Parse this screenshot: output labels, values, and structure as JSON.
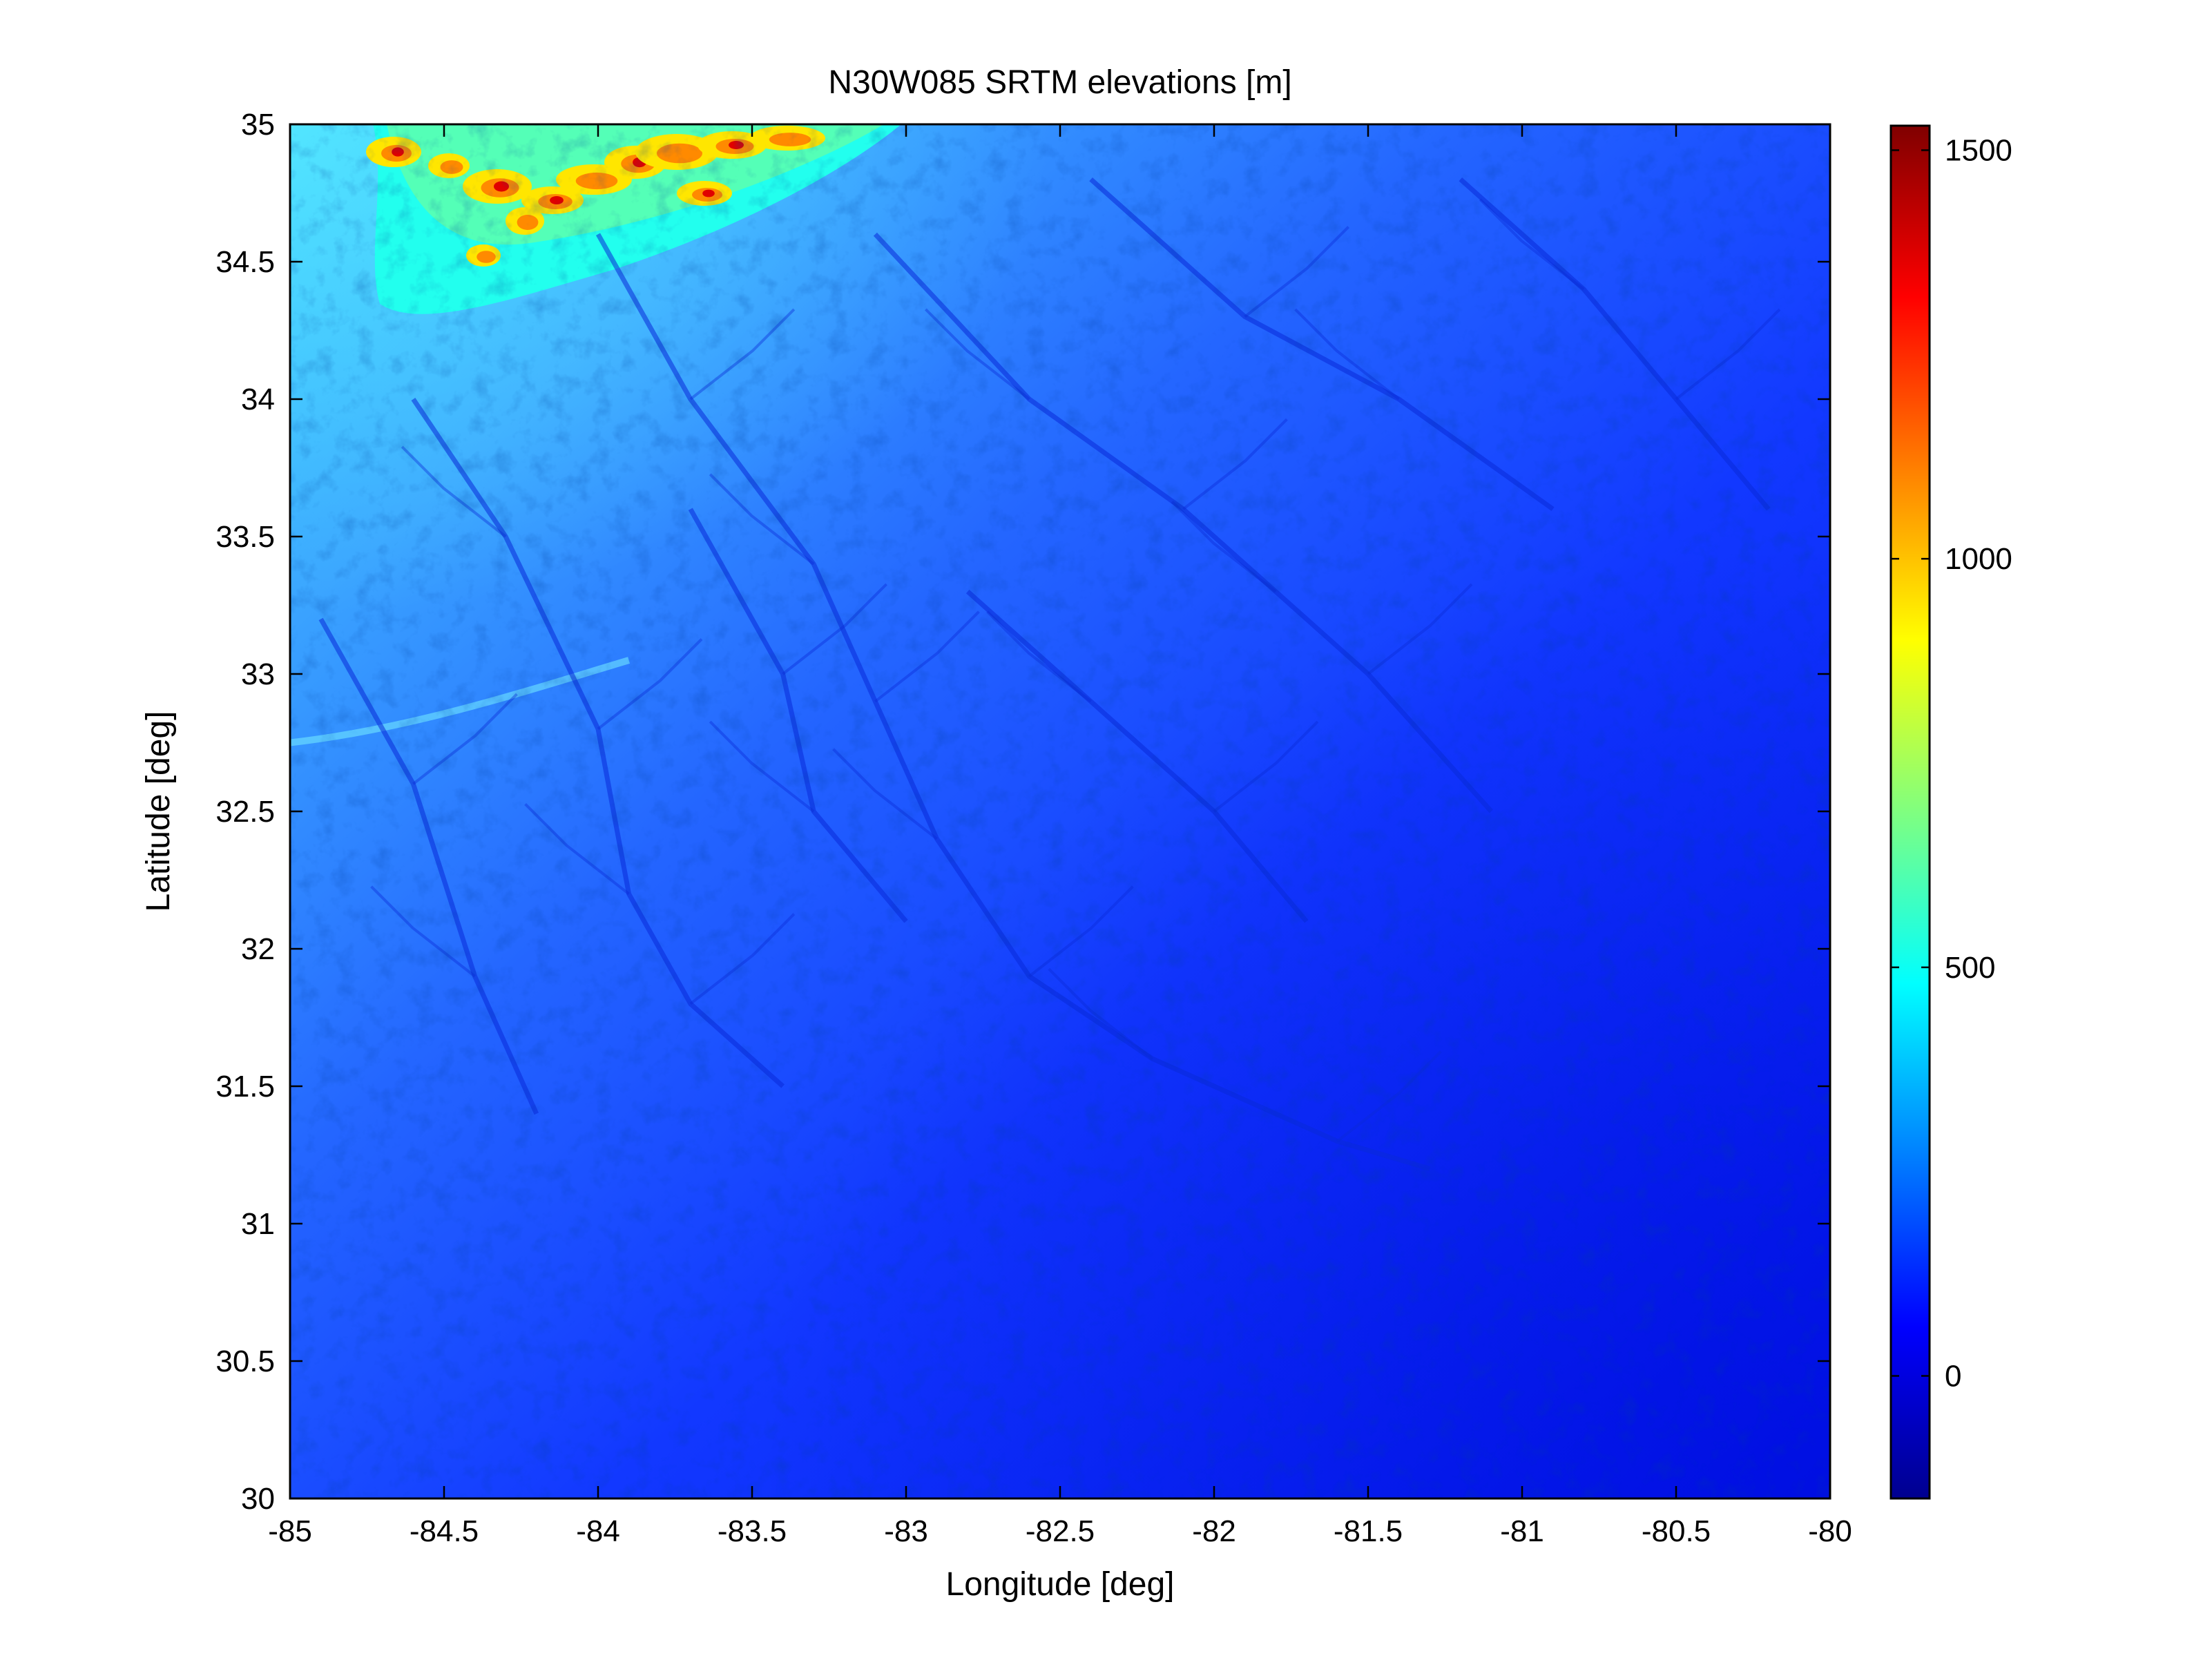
{
  "title": "N30W085 SRTM elevations [m]",
  "xlabel": "Longitude [deg]",
  "ylabel": "Latitude [deg]",
  "x_ticks": [
    "-85",
    "-84.5",
    "-84",
    "-83.5",
    "-83",
    "-82.5",
    "-82",
    "-81.5",
    "-81",
    "-80.5",
    "-80"
  ],
  "y_ticks": [
    "30",
    "30.5",
    "31",
    "31.5",
    "32",
    "32.5",
    "33",
    "33.5",
    "34",
    "34.5",
    "35"
  ],
  "colorbar": {
    "colormap": "jet",
    "range": [
      -150,
      1530
    ],
    "tick_labels": [
      "0",
      "500",
      "1000",
      "1500"
    ],
    "tick_values": [
      0,
      500,
      1000,
      1500
    ]
  },
  "map": {
    "extent": {
      "lon": [
        -85,
        -80
      ],
      "lat": [
        30,
        35
      ]
    },
    "terrain": "SRTM elevation raster; Appalachian highlands in the north-west corner (cyan to yellow/red, up to ~1500 m), gently descending coastal plain toward the south-east (blue, ~0-100 m), with dendritic drainage networks",
    "colors": {
      "highland": "#ff0000",
      "upland": "#00ffff",
      "plain": "#1650ff",
      "lowland": "#0014f0"
    }
  }
}
